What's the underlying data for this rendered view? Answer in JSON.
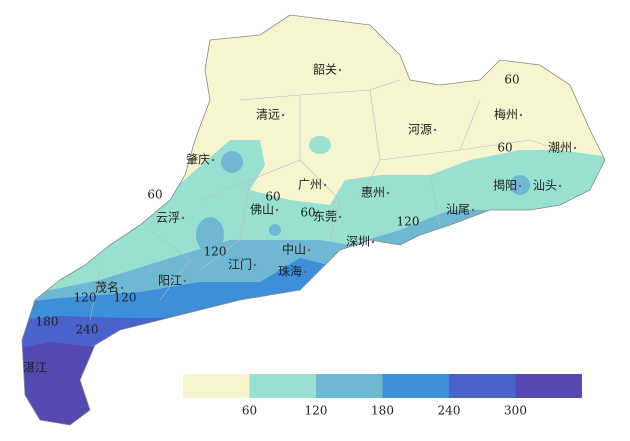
{
  "map": {
    "cities": [
      "韶关",
      "清远",
      "河源",
      "梅州",
      "肇庆",
      "广州",
      "惠州",
      "潮州",
      "揭阳",
      "汕头",
      "云浮",
      "佛山",
      "东莞",
      "汕尾",
      "深圳",
      "江门",
      "中山",
      "珠海",
      "阳江",
      "茂名",
      "湛江"
    ],
    "contour_labels": [
      "60",
      "60",
      "60",
      "60",
      "60",
      "120",
      "120",
      "120",
      "120",
      "180",
      "240"
    ],
    "legend": {
      "colors": [
        "#f7f5cf",
        "#98e0d2",
        "#6fb8d4",
        "#3d8fd9",
        "#4a62cc",
        "#5548b0"
      ],
      "ticks": [
        60,
        120,
        180,
        240,
        300
      ]
    }
  }
}
